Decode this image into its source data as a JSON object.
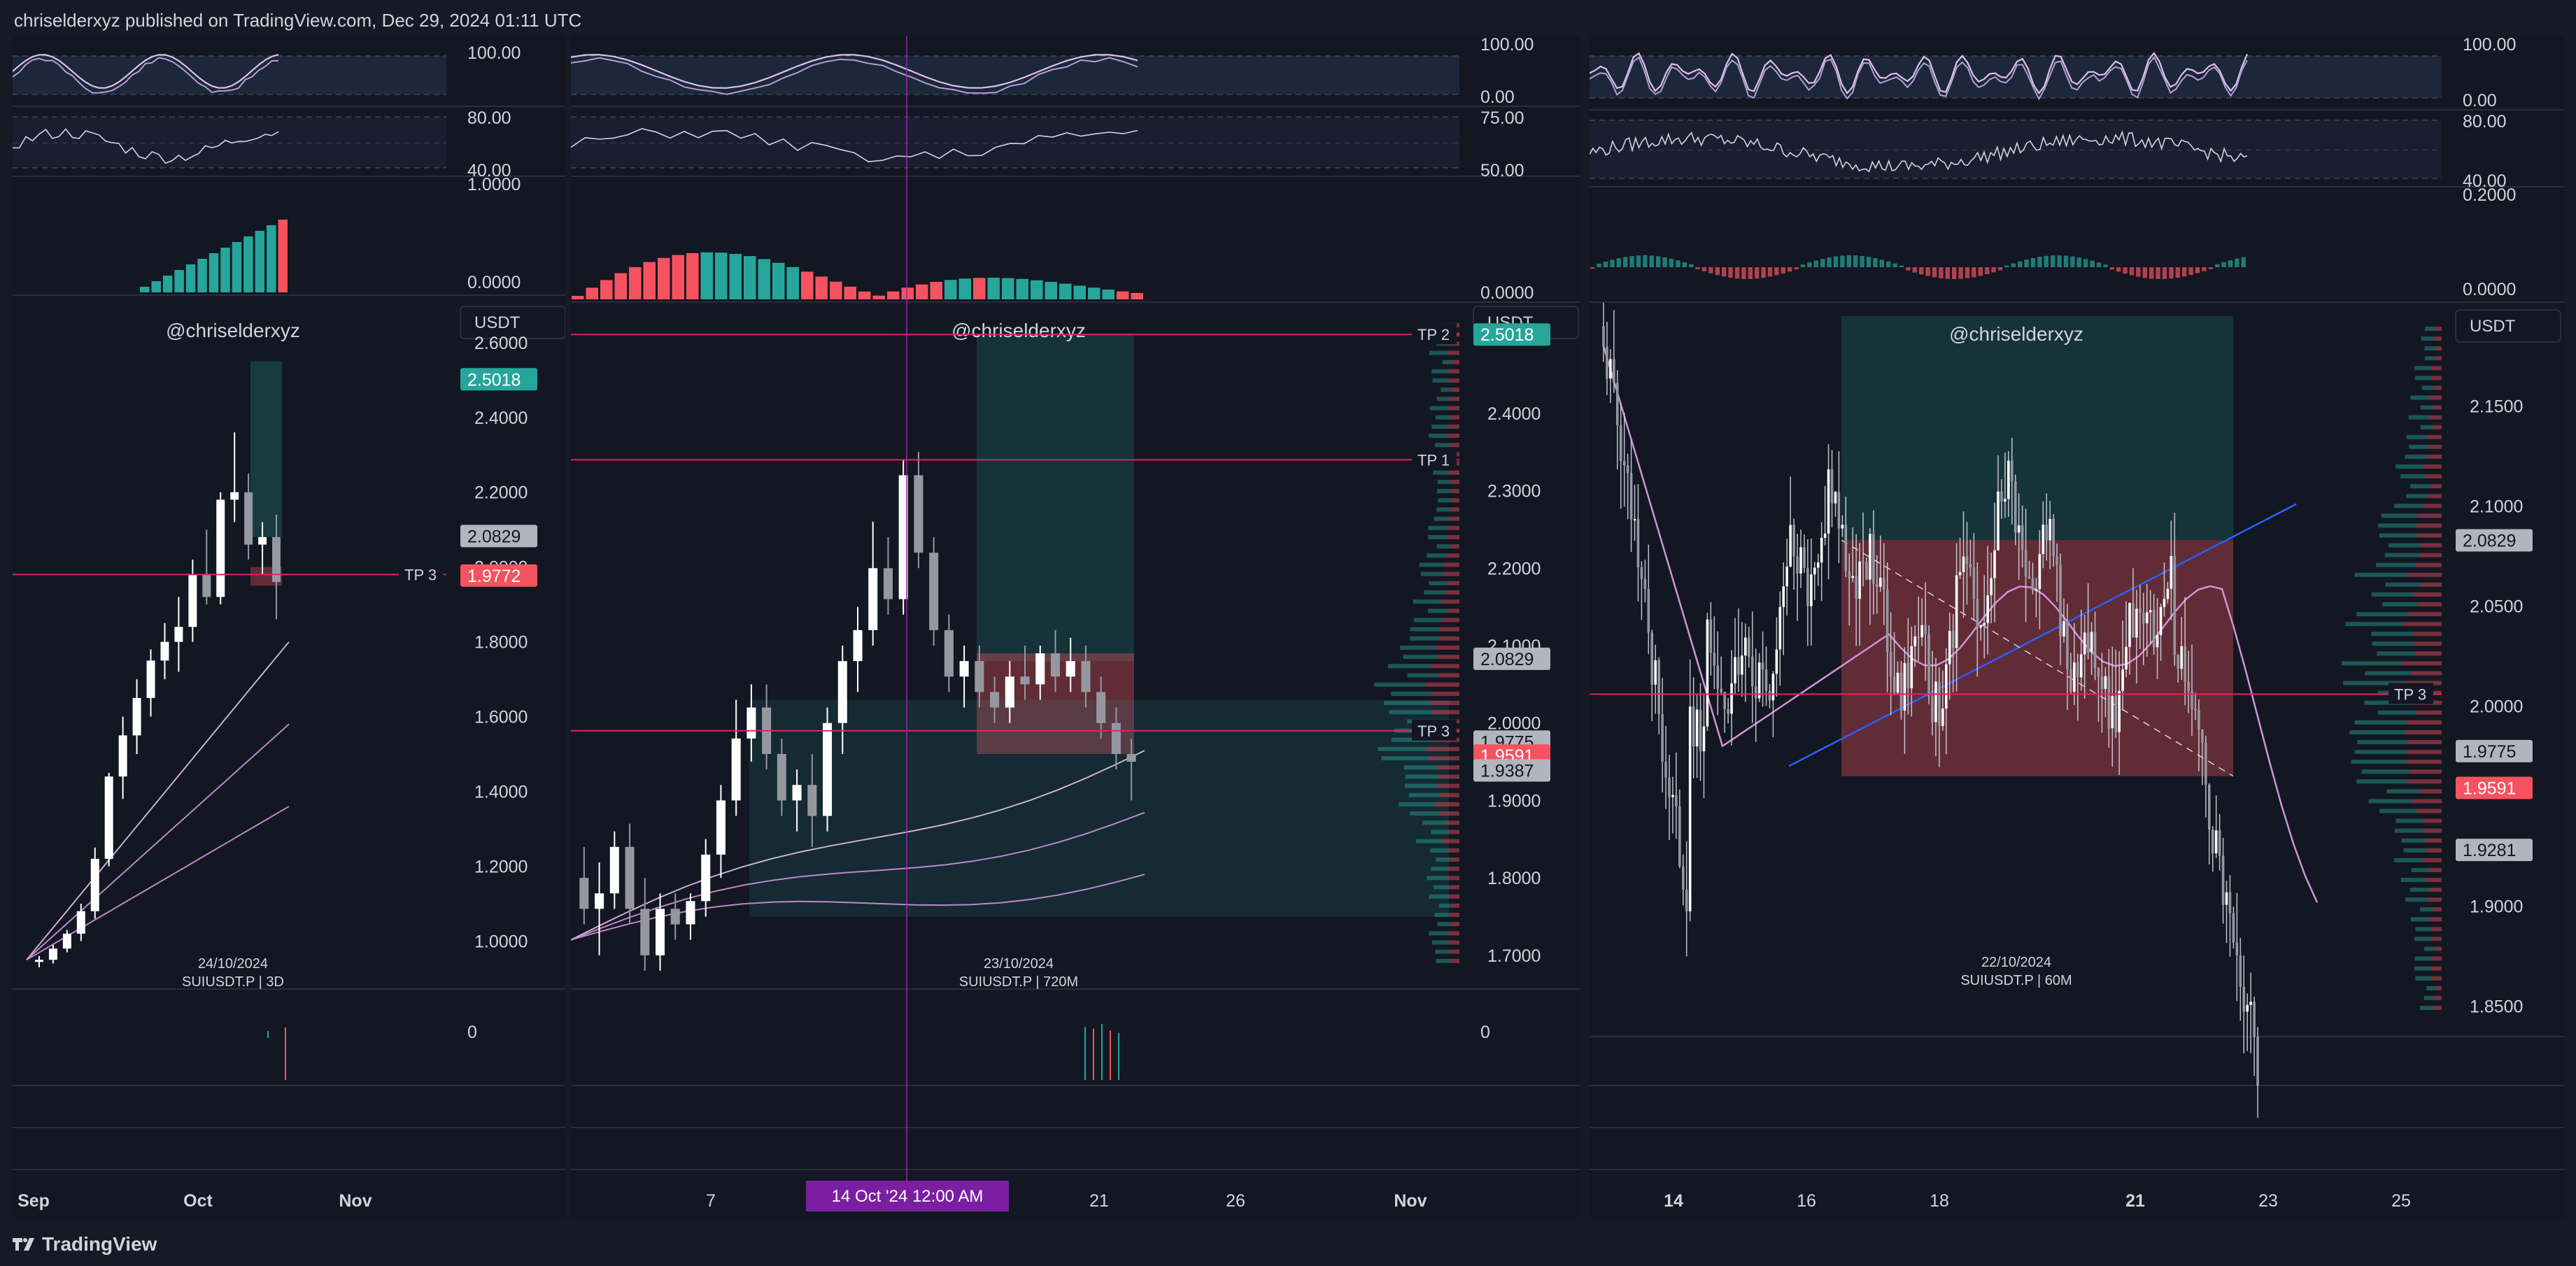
{
  "header": {
    "published": "chriselderxyz published on TradingView.com, Dec 29, 2024 01:11 UTC"
  },
  "footer": {
    "logo": "TradingView"
  },
  "colors": {
    "bg": "#131722",
    "page": "#161a25",
    "up": "#26a69a",
    "down": "#f7525f",
    "tp": "#e91e63",
    "rsi": "#b39ddb",
    "trend": "#2962ff"
  },
  "chart_data": [
    {
      "type": "candlestick",
      "title": "SUIUSDT.P | 3D",
      "date_label": "24/10/2024",
      "watermark": "@chriselderxyz",
      "currency": "USDT",
      "price_ticks": [
        "2.6000",
        "2.4000",
        "2.2000",
        "2.0000",
        "1.8000",
        "1.6000",
        "1.4000",
        "1.2000",
        "1.0000"
      ],
      "ylim": [
        0.9,
        2.68
      ],
      "x_ticks": [
        "Sep",
        "Oct",
        "Nov"
      ],
      "price_labels": [
        {
          "value": "2.5018",
          "price": 2.5018,
          "color": "#26a69a"
        },
        {
          "value": "2.0829",
          "price": 2.0829,
          "color": "#b2b5be"
        },
        {
          "value": "1.9772",
          "price": 1.9772,
          "color": "#f7525f"
        }
      ],
      "lines": [
        {
          "label": "TP 3",
          "price": 1.98
        }
      ],
      "osc1_labels": [
        "100.00"
      ],
      "osc2_labels": [
        "80.00",
        "40.00"
      ],
      "hist_labels": [
        "1.0000",
        "0.0000"
      ],
      "vol_label": "0",
      "candles": [
        [
          0.95,
          0.96,
          0.93,
          0.95
        ],
        [
          0.95,
          0.99,
          0.94,
          0.98
        ],
        [
          0.98,
          1.03,
          0.97,
          1.02
        ],
        [
          1.02,
          1.1,
          1.0,
          1.08
        ],
        [
          1.08,
          1.25,
          1.06,
          1.22
        ],
        [
          1.22,
          1.45,
          1.2,
          1.44
        ],
        [
          1.44,
          1.6,
          1.38,
          1.55
        ],
        [
          1.55,
          1.7,
          1.5,
          1.65
        ],
        [
          1.65,
          1.78,
          1.6,
          1.75
        ],
        [
          1.75,
          1.85,
          1.7,
          1.8
        ],
        [
          1.8,
          1.92,
          1.72,
          1.84
        ],
        [
          1.84,
          2.02,
          1.8,
          1.98
        ],
        [
          1.98,
          2.1,
          1.9,
          1.92
        ],
        [
          1.92,
          2.2,
          1.9,
          2.18
        ],
        [
          2.18,
          2.36,
          2.12,
          2.2
        ],
        [
          2.2,
          2.25,
          2.02,
          2.06
        ],
        [
          2.06,
          2.12,
          1.98,
          2.08
        ],
        [
          2.08,
          2.14,
          1.86,
          1.96
        ]
      ]
    },
    {
      "type": "candlestick",
      "title": "SUIUSDT.P | 720M",
      "date_label": "23/10/2024",
      "watermark": "@chriselderxyz",
      "currency": "USDT",
      "price_ticks": [
        "2.4000",
        "2.3000",
        "2.2000",
        "2.1000",
        "2.0000",
        "1.9000",
        "1.8000",
        "1.7000"
      ],
      "ylim": [
        1.67,
        2.53
      ],
      "x_ticks": [
        "7",
        "21",
        "26",
        "Nov"
      ],
      "crosshair_label": "14 Oct '24  12:00 AM",
      "price_labels": [
        {
          "value": "2.5018",
          "price": 2.5018,
          "color": "#26a69a"
        },
        {
          "value": "2.0829",
          "price": 2.0829,
          "color": "#b2b5be"
        },
        {
          "value": "1.9775",
          "price": 1.976,
          "color": "#b2b5be"
        },
        {
          "value": "1.9591",
          "price": 1.958,
          "color": "#f7525f"
        },
        {
          "value": "1.9387",
          "price": 1.9387,
          "color": "#b2b5be"
        }
      ],
      "lines": [
        {
          "label": "TP 2",
          "price": 2.5018
        },
        {
          "label": "TP 1",
          "price": 2.34
        },
        {
          "label": "TP 3",
          "price": 1.99
        }
      ],
      "osc1_labels": [
        "100.00",
        "0.00"
      ],
      "osc2_labels": [
        "75.00",
        "50.00"
      ],
      "hist_labels": [
        "0.0000"
      ],
      "vol_label": "0",
      "candles": [
        [
          1.8,
          1.84,
          1.74,
          1.76
        ],
        [
          1.76,
          1.82,
          1.7,
          1.78
        ],
        [
          1.78,
          1.86,
          1.76,
          1.84
        ],
        [
          1.84,
          1.87,
          1.74,
          1.76
        ],
        [
          1.76,
          1.8,
          1.68,
          1.7
        ],
        [
          1.7,
          1.78,
          1.68,
          1.76
        ],
        [
          1.76,
          1.78,
          1.72,
          1.74
        ],
        [
          1.74,
          1.78,
          1.72,
          1.77
        ],
        [
          1.77,
          1.85,
          1.75,
          1.83
        ],
        [
          1.83,
          1.92,
          1.8,
          1.9
        ],
        [
          1.9,
          2.03,
          1.88,
          1.98
        ],
        [
          1.98,
          2.05,
          1.95,
          2.02
        ],
        [
          2.02,
          2.05,
          1.94,
          1.96
        ],
        [
          1.96,
          1.98,
          1.88,
          1.9
        ],
        [
          1.9,
          1.94,
          1.86,
          1.92
        ],
        [
          1.92,
          1.96,
          1.84,
          1.88
        ],
        [
          1.88,
          2.02,
          1.86,
          2.0
        ],
        [
          2.0,
          2.1,
          1.96,
          2.08
        ],
        [
          2.08,
          2.15,
          2.04,
          2.12
        ],
        [
          2.12,
          2.26,
          2.1,
          2.2
        ],
        [
          2.2,
          2.24,
          2.14,
          2.16
        ],
        [
          2.16,
          2.34,
          2.14,
          2.32
        ],
        [
          2.32,
          2.35,
          2.2,
          2.22
        ],
        [
          2.22,
          2.24,
          2.1,
          2.12
        ],
        [
          2.12,
          2.14,
          2.04,
          2.06
        ],
        [
          2.06,
          2.1,
          2.02,
          2.08
        ],
        [
          2.08,
          2.1,
          2.02,
          2.04
        ],
        [
          2.04,
          2.06,
          2.0,
          2.02
        ],
        [
          2.02,
          2.08,
          2.0,
          2.06
        ],
        [
          2.06,
          2.1,
          2.03,
          2.05
        ],
        [
          2.05,
          2.1,
          2.03,
          2.09
        ],
        [
          2.09,
          2.12,
          2.04,
          2.06
        ],
        [
          2.06,
          2.11,
          2.04,
          2.08
        ],
        [
          2.08,
          2.1,
          2.02,
          2.04
        ],
        [
          2.04,
          2.06,
          1.98,
          2.0
        ],
        [
          2.0,
          2.02,
          1.94,
          1.96
        ],
        [
          1.96,
          1.98,
          1.9,
          1.95
        ]
      ]
    },
    {
      "type": "candlestick",
      "title": "SUIUSDT.P | 60M",
      "date_label": "22/10/2024",
      "watermark": "@chriselderxyz",
      "currency": "USDT",
      "price_ticks": [
        "2.1500",
        "2.1000",
        "2.0500",
        "2.0000",
        "1.9000",
        "1.8500"
      ],
      "ylim": [
        1.84,
        2.195
      ],
      "x_ticks": [
        "14",
        "16",
        "18",
        "21",
        "23",
        "25"
      ],
      "price_labels": [
        {
          "value": "2.0829",
          "price": 2.0829,
          "color": "#b2b5be"
        },
        {
          "value": "1.9775",
          "price": 1.9775,
          "color": "#b2b5be"
        },
        {
          "value": "1.9591",
          "price": 1.9591,
          "color": "#f7525f"
        },
        {
          "value": "1.9281",
          "price": 1.9281,
          "color": "#b2b5be"
        }
      ],
      "lines": [
        {
          "label": "TP 3",
          "price": 2.006
        }
      ],
      "osc1_labels": [
        "100.00",
        "0.00"
      ],
      "osc2_labels": [
        "80.00",
        "40.00"
      ],
      "hist_labels": [
        "0.2000",
        "0.0000"
      ],
      "vol_label": "",
      "candles": []
    }
  ]
}
